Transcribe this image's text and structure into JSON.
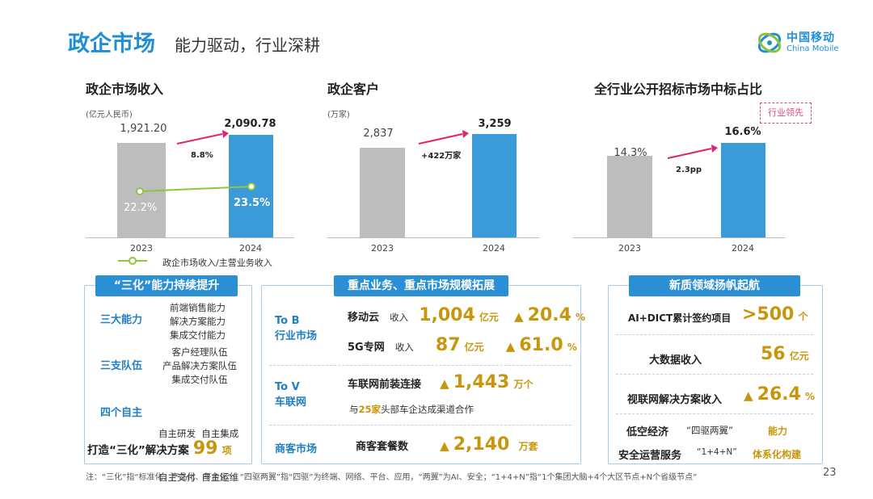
{
  "header": {
    "title_main": "政企市场",
    "title_sub": "能力驱动，行业深耕",
    "logo_cn": "中国移动",
    "logo_en": "China Mobile"
  },
  "chart_data": [
    {
      "type": "bar",
      "title": "政企市场收入",
      "unit": "(亿元人民币)",
      "categories": [
        "2023",
        "2024"
      ],
      "values": [
        1921.2,
        2090.78
      ],
      "value_labels": [
        "1,921.20",
        "2,090.78"
      ],
      "growth_label": "8.8%",
      "line_series": {
        "name": "政企市场收入/主营业务收入",
        "values": [
          22.2,
          23.5
        ],
        "labels": [
          "22.2%",
          "23.5%"
        ]
      },
      "colors": {
        "bar_2023": "#bdbdbd",
        "bar_2024": "#3b9ad8",
        "line": "#8cc63e",
        "arrow": "#e0226f"
      }
    },
    {
      "type": "bar",
      "title": "政企客户",
      "unit": "(万家)",
      "categories": [
        "2023",
        "2024"
      ],
      "values": [
        2837,
        3259
      ],
      "value_labels": [
        "2,837",
        "3,259"
      ],
      "growth_label": "+422万家"
    },
    {
      "type": "bar",
      "title": "全行业公开招标市场中标占比",
      "categories": [
        "2023",
        "2024"
      ],
      "values": [
        14.3,
        16.6
      ],
      "value_labels": [
        "14.3%",
        "16.6%"
      ],
      "growth_label": "2.3pp",
      "badge": "行业领先"
    }
  ],
  "panel1": {
    "title": "“三化”能力持续提升",
    "groups": [
      {
        "label": "三大能力",
        "items": [
          "前端销售能力",
          "解决方案能力",
          "集成交付能力"
        ]
      },
      {
        "label": "三支队伍",
        "items": [
          "客户经理队伍",
          "产品解决方案队伍",
          "集成交付队伍"
        ]
      },
      {
        "label": "四个自主",
        "items": [
          "自主研发  自主集成",
          "自主交付  自主运维"
        ]
      }
    ],
    "bottom_label": "打造“三化”解决方案",
    "bottom_value": "99",
    "bottom_unit": "项"
  },
  "panel2": {
    "title": "重点业务、重点市场规模拓展",
    "tob": {
      "label_line1": "To B",
      "label_line2": "行业市场",
      "rows": [
        {
          "name": "移动云",
          "metric": "收入",
          "value": "1,004",
          "unit": "亿元",
          "growth": "20.4",
          "growth_unit": "%"
        },
        {
          "name": "5G专网",
          "metric": "收入",
          "value": "87",
          "unit": "亿元",
          "growth": "61.0",
          "growth_unit": "%"
        }
      ]
    },
    "tov": {
      "label_line1": "To V",
      "label_line2": "车联网",
      "row_name": "车联网前装连接",
      "value": "1,443",
      "unit": "万个",
      "note_pre": "与",
      "note_num": "25家",
      "note_post": "头部车企达成渠道合作"
    },
    "commerce": {
      "label": "商客市场",
      "row_name": "商客套餐数",
      "value": "2,140",
      "unit": "万套"
    }
  },
  "panel3": {
    "title": "新质领域扬帆起航",
    "rows": [
      {
        "name": "AI+DICT累计签约项目",
        "value": ">500",
        "unit": "个"
      },
      {
        "name": "大数据收入",
        "value": "56",
        "unit": "亿元"
      },
      {
        "name": "视联网解决方案收入",
        "value": "26.4",
        "unit": "%"
      }
    ],
    "row4": {
      "name": "低空经济",
      "mid": "“四驱两翼”",
      "right": "能力"
    },
    "row5": {
      "name": "安全运营服务",
      "mid": "“1+4+N”",
      "right": "体系化构建"
    }
  },
  "footer": {
    "note": "注：“三化”指“标准化、产品化、平台化”；“四驱两翼”指“四驱”为终端、网络、平台、应用，“两翼”为AI、安全；“1+4+N”指“1个集团大脑+4个大区节点+N个省级节点”",
    "page_number": "23"
  }
}
